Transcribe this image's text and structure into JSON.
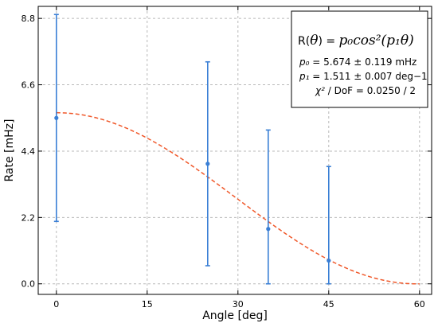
{
  "chart_data": {
    "type": "scatter",
    "xlabel": "Angle [deg]",
    "ylabel": "Rate [mHz]",
    "xlim": [
      -3,
      62
    ],
    "ylim": [
      -0.35,
      9.2
    ],
    "xticks": [
      0,
      15,
      30,
      45,
      60
    ],
    "yticks": [
      0.0,
      2.2,
      4.4,
      6.6,
      8.8
    ],
    "ytick_labels": [
      "0.0",
      "2.2",
      "4.4",
      "6.6",
      "8.8"
    ],
    "grid": true,
    "series": [
      {
        "type": "errorbar",
        "x": [
          0,
          25,
          35,
          45
        ],
        "y": [
          5.5,
          3.98,
          1.82,
          0.77
        ],
        "yerr_low": [
          3.43,
          3.38,
          1.82,
          0.77
        ],
        "yerr_high": [
          3.43,
          3.38,
          3.28,
          3.12
        ],
        "color": "#3a7fd5"
      },
      {
        "type": "fit",
        "function": "p0*cos^2(p1*theta)",
        "p0": 5.674,
        "p1": 1.511,
        "x_range": [
          0,
          60
        ],
        "color": "#f0582a"
      }
    ]
  },
  "legend": {
    "placement": "top-right",
    "formula_prefix": "R(",
    "formula_theta": "θ",
    "formula_mid": ") = ",
    "formula_rhs": "p₀cos²(p₁θ)",
    "p0_name": "p₀",
    "p0_text": " = 5.674 ± 0.119 mHz",
    "p1_name": "p₁",
    "p1_text": " = 1.511 ± 0.007 deg−1",
    "chi_name": "χ²",
    "chi_text": " / DoF = 0.0250 / 2"
  }
}
